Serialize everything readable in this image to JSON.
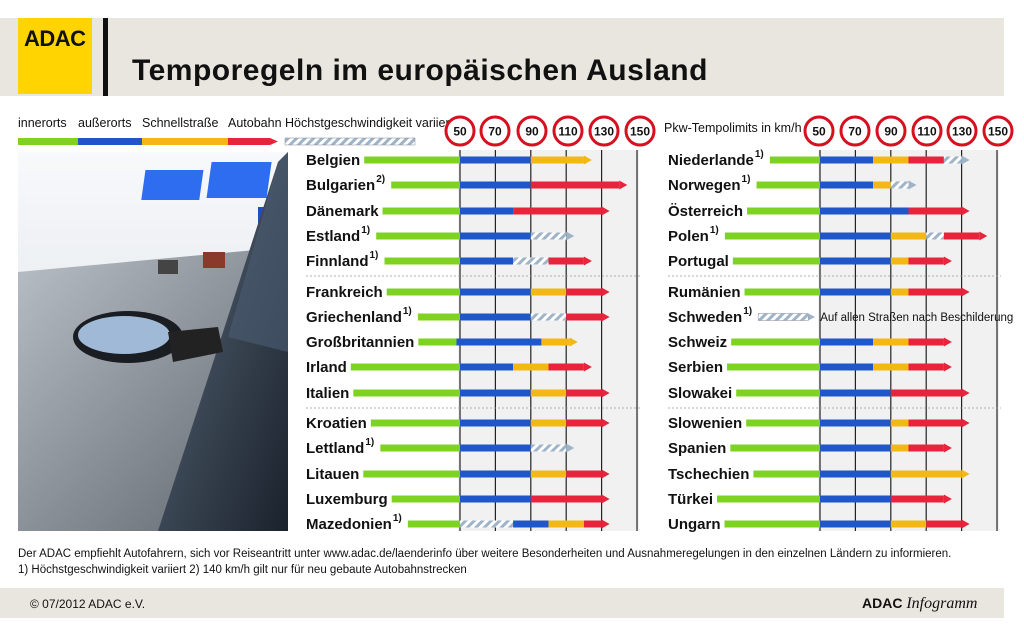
{
  "header": {
    "logo": "ADAC",
    "title": "Temporegeln im europäischen Ausland"
  },
  "legend": {
    "innerorts": "innerorts",
    "ausserorts": "außerorts",
    "schnellstrasse": "Schnellstraße",
    "autobahn": "Autobahn",
    "variiert": "Höchstgeschwindigkeit variiert",
    "unit_label": "Pkw-Tempolimits in km/h"
  },
  "colors": {
    "innerorts": "#7ed321",
    "ausserorts": "#1f57c8",
    "schnellstrasse": "#f4b814",
    "autobahn": "#e8243c",
    "variiert": "#9fb4c7"
  },
  "sweden_note": "Auf allen Straßen nach Beschilderung",
  "footnote_text": "Der ADAC empfiehlt Autofahrern, sich vor Reiseantritt unter www.adac.de/laenderinfo über weitere Besonderheiten und Ausnahmeregelungen in den einzelnen Ländern zu informieren.",
  "footnote_defs": "1) Höchstgeschwindigkeit variiert   2) 140 km/h gilt nur für neu gebaute Autobahnstrecken",
  "footer": {
    "copyright": "© 07/2012 ADAC e.V.",
    "brand_bold": "ADAC",
    "brand_italic": "Infogramm"
  },
  "chart_data": {
    "type": "bar",
    "ticks": [
      50,
      70,
      90,
      110,
      130,
      150
    ],
    "xlim": [
      50,
      150
    ],
    "legend": [
      "innerorts",
      "außerorts",
      "Schnellstraße",
      "Autobahn"
    ],
    "left_columns": [
      {
        "country": "Belgien",
        "fn": "",
        "seg": [
          [
            "i",
            50
          ],
          [
            "a",
            90
          ],
          [
            "s",
            120
          ],
          [
            "b",
            120
          ]
        ]
      },
      {
        "country": "Bulgarien",
        "fn": "2)",
        "seg": [
          [
            "i",
            50
          ],
          [
            "a",
            90
          ],
          [
            "b",
            140
          ]
        ]
      },
      {
        "country": "Dänemark",
        "fn": "",
        "seg": [
          [
            "i",
            50
          ],
          [
            "a",
            80
          ],
          [
            "b",
            130
          ]
        ]
      },
      {
        "country": "Estland",
        "fn": "1)",
        "seg": [
          [
            "i",
            50
          ],
          [
            "a",
            90
          ],
          [
            "v",
            110
          ]
        ]
      },
      {
        "country": "Finnland",
        "fn": "1)",
        "seg": [
          [
            "i",
            50
          ],
          [
            "a",
            80
          ],
          [
            "v",
            100
          ],
          [
            "b",
            120
          ]
        ]
      },
      {
        "country": "Frankreich",
        "fn": "",
        "seg": [
          [
            "i",
            50
          ],
          [
            "a",
            90
          ],
          [
            "s",
            110
          ],
          [
            "b",
            130
          ]
        ]
      },
      {
        "country": "Griechenland",
        "fn": "1)",
        "seg": [
          [
            "i",
            50
          ],
          [
            "a",
            90
          ],
          [
            "v",
            110
          ],
          [
            "b",
            130
          ]
        ]
      },
      {
        "country": "Großbritannien",
        "fn": "",
        "seg": [
          [
            "i",
            48
          ],
          [
            "a",
            96
          ],
          [
            "s",
            112
          ],
          [
            "b",
            112
          ]
        ]
      },
      {
        "country": "Irland",
        "fn": "",
        "seg": [
          [
            "i",
            50
          ],
          [
            "a",
            80
          ],
          [
            "s",
            100
          ],
          [
            "b",
            120
          ]
        ]
      },
      {
        "country": "Italien",
        "fn": "",
        "seg": [
          [
            "i",
            50
          ],
          [
            "a",
            90
          ],
          [
            "s",
            110
          ],
          [
            "b",
            130
          ]
        ]
      },
      {
        "country": "Kroatien",
        "fn": "",
        "seg": [
          [
            "i",
            50
          ],
          [
            "a",
            90
          ],
          [
            "s",
            110
          ],
          [
            "b",
            130
          ]
        ]
      },
      {
        "country": "Lettland",
        "fn": "1)",
        "seg": [
          [
            "i",
            50
          ],
          [
            "a",
            90
          ],
          [
            "v",
            110
          ]
        ]
      },
      {
        "country": "Litauen",
        "fn": "",
        "seg": [
          [
            "i",
            50
          ],
          [
            "a",
            90
          ],
          [
            "s",
            110
          ],
          [
            "b",
            130
          ]
        ]
      },
      {
        "country": "Luxemburg",
        "fn": "",
        "seg": [
          [
            "i",
            50
          ],
          [
            "a",
            90
          ],
          [
            "b",
            130
          ]
        ]
      },
      {
        "country": "Mazedonien",
        "fn": "1)",
        "seg": [
          [
            "i",
            50
          ],
          [
            "v",
            80
          ],
          [
            "a",
            100
          ],
          [
            "s",
            120
          ],
          [
            "b",
            130
          ]
        ]
      }
    ],
    "right_columns": [
      {
        "country": "Niederlande",
        "fn": "1)",
        "seg": [
          [
            "i",
            50
          ],
          [
            "a",
            80
          ],
          [
            "s",
            100
          ],
          [
            "b",
            120
          ],
          [
            "v",
            130
          ]
        ]
      },
      {
        "country": "Norwegen",
        "fn": "1)",
        "seg": [
          [
            "i",
            50
          ],
          [
            "a",
            80
          ],
          [
            "s",
            90
          ],
          [
            "v",
            100
          ]
        ]
      },
      {
        "country": "Österreich",
        "fn": "",
        "seg": [
          [
            "i",
            50
          ],
          [
            "a",
            100
          ],
          [
            "b",
            130
          ]
        ]
      },
      {
        "country": "Polen",
        "fn": "1)",
        "seg": [
          [
            "i",
            50
          ],
          [
            "a",
            90
          ],
          [
            "s",
            110
          ],
          [
            "v",
            120
          ],
          [
            "b",
            140
          ]
        ]
      },
      {
        "country": "Portugal",
        "fn": "",
        "seg": [
          [
            "i",
            50
          ],
          [
            "a",
            90
          ],
          [
            "s",
            100
          ],
          [
            "b",
            120
          ]
        ]
      },
      {
        "country": "Rumänien",
        "fn": "",
        "seg": [
          [
            "i",
            50
          ],
          [
            "a",
            90
          ],
          [
            "s",
            100
          ],
          [
            "b",
            130
          ]
        ]
      },
      {
        "country": "Schweden",
        "fn": "1)",
        "seg": [
          [
            "v",
            30
          ]
        ]
      },
      {
        "country": "Schweiz",
        "fn": "",
        "seg": [
          [
            "i",
            50
          ],
          [
            "a",
            80
          ],
          [
            "s",
            100
          ],
          [
            "b",
            120
          ]
        ]
      },
      {
        "country": "Serbien",
        "fn": "",
        "seg": [
          [
            "i",
            50
          ],
          [
            "a",
            80
          ],
          [
            "s",
            100
          ],
          [
            "b",
            120
          ]
        ]
      },
      {
        "country": "Slowakei",
        "fn": "",
        "seg": [
          [
            "i",
            50
          ],
          [
            "a",
            90
          ],
          [
            "b",
            130
          ]
        ]
      },
      {
        "country": "Slowenien",
        "fn": "",
        "seg": [
          [
            "i",
            50
          ],
          [
            "a",
            90
          ],
          [
            "s",
            100
          ],
          [
            "b",
            130
          ]
        ]
      },
      {
        "country": "Spanien",
        "fn": "",
        "seg": [
          [
            "i",
            50
          ],
          [
            "a",
            90
          ],
          [
            "s",
            100
          ],
          [
            "b",
            120
          ]
        ]
      },
      {
        "country": "Tschechien",
        "fn": "",
        "seg": [
          [
            "i",
            50
          ],
          [
            "a",
            90
          ],
          [
            "s",
            130
          ]
        ]
      },
      {
        "country": "Türkei",
        "fn": "",
        "seg": [
          [
            "i",
            50
          ],
          [
            "a",
            90
          ],
          [
            "b",
            120
          ]
        ]
      },
      {
        "country": "Ungarn",
        "fn": "",
        "seg": [
          [
            "i",
            50
          ],
          [
            "a",
            90
          ],
          [
            "s",
            110
          ],
          [
            "b",
            130
          ]
        ]
      }
    ]
  }
}
